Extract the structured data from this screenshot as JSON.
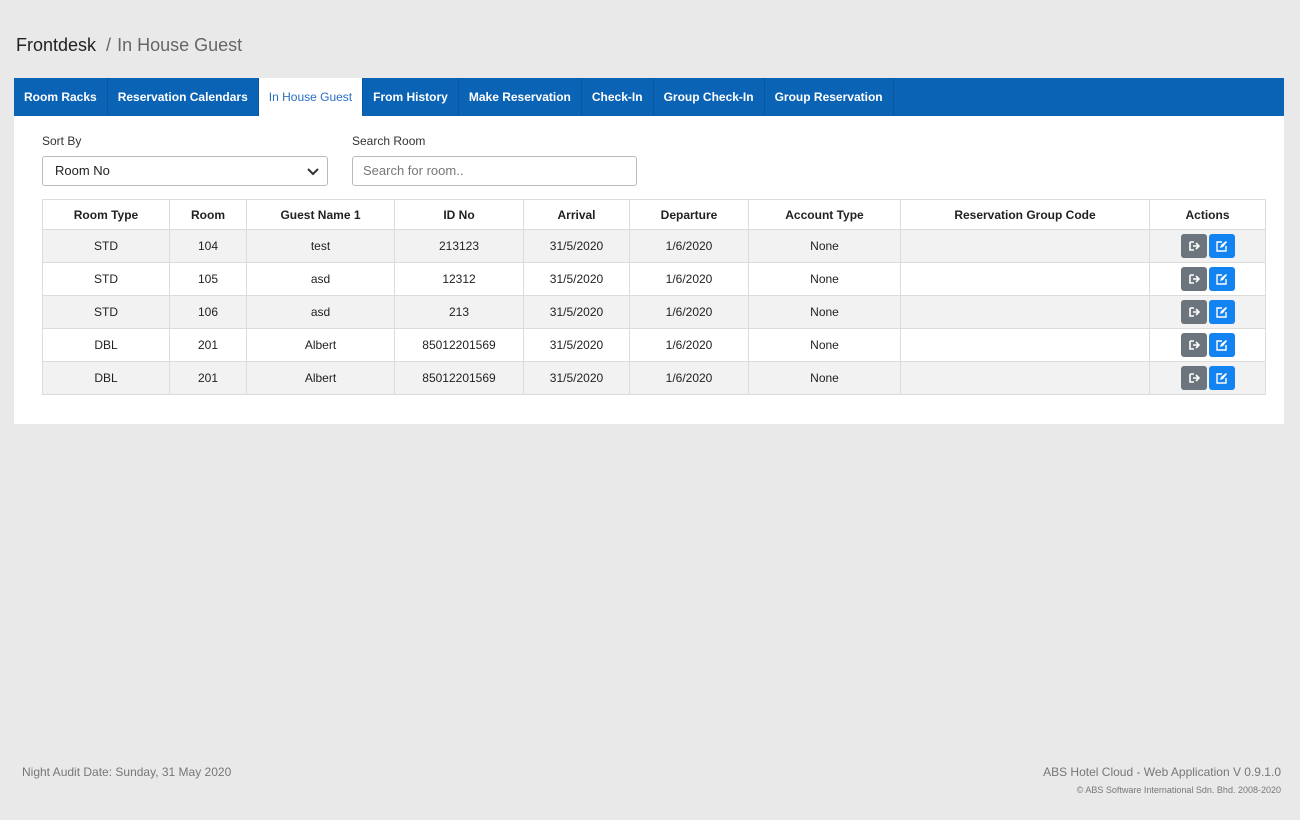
{
  "breadcrumb": {
    "root": "Frontdesk",
    "separator": "/",
    "current": "In House Guest"
  },
  "tabs": [
    "Room Racks",
    "Reservation Calendars",
    "In House Guest",
    "From History",
    "Make Reservation",
    "Check-In",
    "Group Check-In",
    "Group Reservation"
  ],
  "active_tab": 2,
  "filters": {
    "sort_by": {
      "label": "Sort By",
      "value": "Room No"
    },
    "search": {
      "label": "Search Room",
      "placeholder": "Search for room.."
    }
  },
  "table": {
    "headers": [
      "Room Type",
      "Room",
      "Guest Name 1",
      "ID No",
      "Arrival",
      "Departure",
      "Account Type",
      "Reservation Group Code",
      "Actions"
    ],
    "rows": [
      [
        "STD",
        "104",
        "test",
        "213123",
        "31/5/2020",
        "1/6/2020",
        "None",
        ""
      ],
      [
        "STD",
        "105",
        "asd",
        "12312",
        "31/5/2020",
        "1/6/2020",
        "None",
        ""
      ],
      [
        "STD",
        "106",
        "asd",
        "213",
        "31/5/2020",
        "1/6/2020",
        "None",
        ""
      ],
      [
        "DBL",
        "201",
        "Albert",
        "85012201569",
        "31/5/2020",
        "1/6/2020",
        "None",
        ""
      ],
      [
        "DBL",
        "201",
        "Albert",
        "85012201569",
        "31/5/2020",
        "1/6/2020",
        "None",
        ""
      ]
    ]
  },
  "footer": {
    "audit": "Night Audit Date: Sunday, 31 May 2020",
    "app": "ABS Hotel Cloud - Web Application V 0.9.1.0",
    "copyright": "© ABS Software International Sdn. Bhd. 2008-2020"
  }
}
